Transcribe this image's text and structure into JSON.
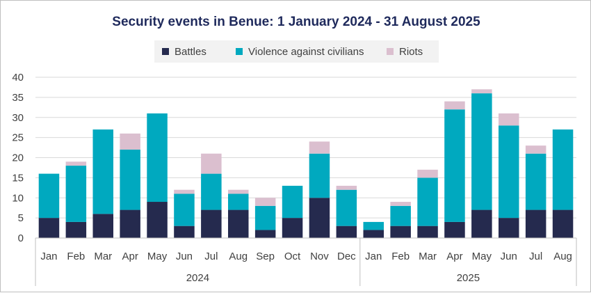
{
  "chart_data": {
    "type": "bar",
    "stacked": true,
    "title": "Security events in Benue: 1 January 2024 - 31 August 2025",
    "categories": [
      "Jan",
      "Feb",
      "Mar",
      "Apr",
      "May",
      "Jun",
      "Jul",
      "Aug",
      "Sep",
      "Oct",
      "Nov",
      "Dec",
      "Jan",
      "Feb",
      "Mar",
      "Apr",
      "May",
      "Jun",
      "Jul",
      "Aug"
    ],
    "groups": [
      {
        "label": "2024",
        "count": 12
      },
      {
        "label": "2025",
        "count": 8
      }
    ],
    "series": [
      {
        "name": "Battles",
        "color": "#252a4e",
        "values": [
          5,
          4,
          6,
          7,
          9,
          3,
          7,
          7,
          2,
          5,
          10,
          3,
          2,
          3,
          3,
          4,
          7,
          5,
          7,
          7
        ]
      },
      {
        "name": "Violence against civilians",
        "color": "#00a9bf",
        "values": [
          11,
          14,
          21,
          15,
          22,
          8,
          9,
          4,
          6,
          8,
          11,
          9,
          2,
          5,
          12,
          28,
          29,
          23,
          14,
          20
        ]
      },
      {
        "name": "Riots",
        "color": "#dbbfcf",
        "values": [
          0,
          1,
          0,
          4,
          0,
          1,
          5,
          1,
          2,
          0,
          3,
          1,
          0,
          1,
          2,
          2,
          1,
          3,
          2,
          0
        ]
      }
    ],
    "yticks": [
      0,
      5,
      10,
      15,
      20,
      25,
      30,
      35,
      40
    ],
    "ylim": [
      0,
      40
    ],
    "grid": true,
    "legend_position": "top",
    "xlabel": "",
    "ylabel": ""
  }
}
